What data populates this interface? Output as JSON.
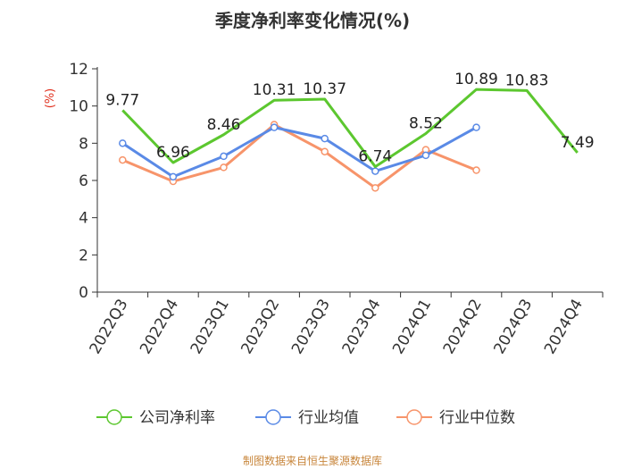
{
  "chart_data": {
    "type": "line",
    "title": "季度净利率变化情况(%)",
    "ylabel": "(%)",
    "ylim": [
      0,
      12
    ],
    "yticks": [
      0,
      2,
      4,
      6,
      8,
      10,
      12
    ],
    "categories": [
      "2022Q3",
      "2022Q4",
      "2023Q1",
      "2023Q2",
      "2023Q3",
      "2023Q4",
      "2024Q1",
      "2024Q2",
      "2024Q3",
      "2024Q4"
    ],
    "grid": false,
    "legend_position": "bottom",
    "series": [
      {
        "name": "公司净利率",
        "color": "#5cc72f",
        "values": [
          9.77,
          6.96,
          8.46,
          10.31,
          10.37,
          6.74,
          8.52,
          10.89,
          10.83,
          7.49
        ],
        "labels": [
          "9.77",
          "6.96",
          "8.46",
          "10.31",
          "10.37",
          "6.74",
          "8.52",
          "10.89",
          "10.83",
          "7.49"
        ],
        "markers": false
      },
      {
        "name": "行业均值",
        "color": "#5a8ae6",
        "values": [
          8.0,
          6.2,
          7.3,
          8.85,
          8.25,
          6.5,
          7.35,
          8.85,
          null,
          null
        ],
        "markers": true
      },
      {
        "name": "行业中位数",
        "color": "#f7946a",
        "values": [
          7.1,
          5.95,
          6.7,
          9.0,
          7.55,
          5.6,
          7.65,
          6.55,
          null,
          null
        ],
        "markers": true
      }
    ]
  },
  "source_text": "制图数据来自恒生聚源数据库"
}
